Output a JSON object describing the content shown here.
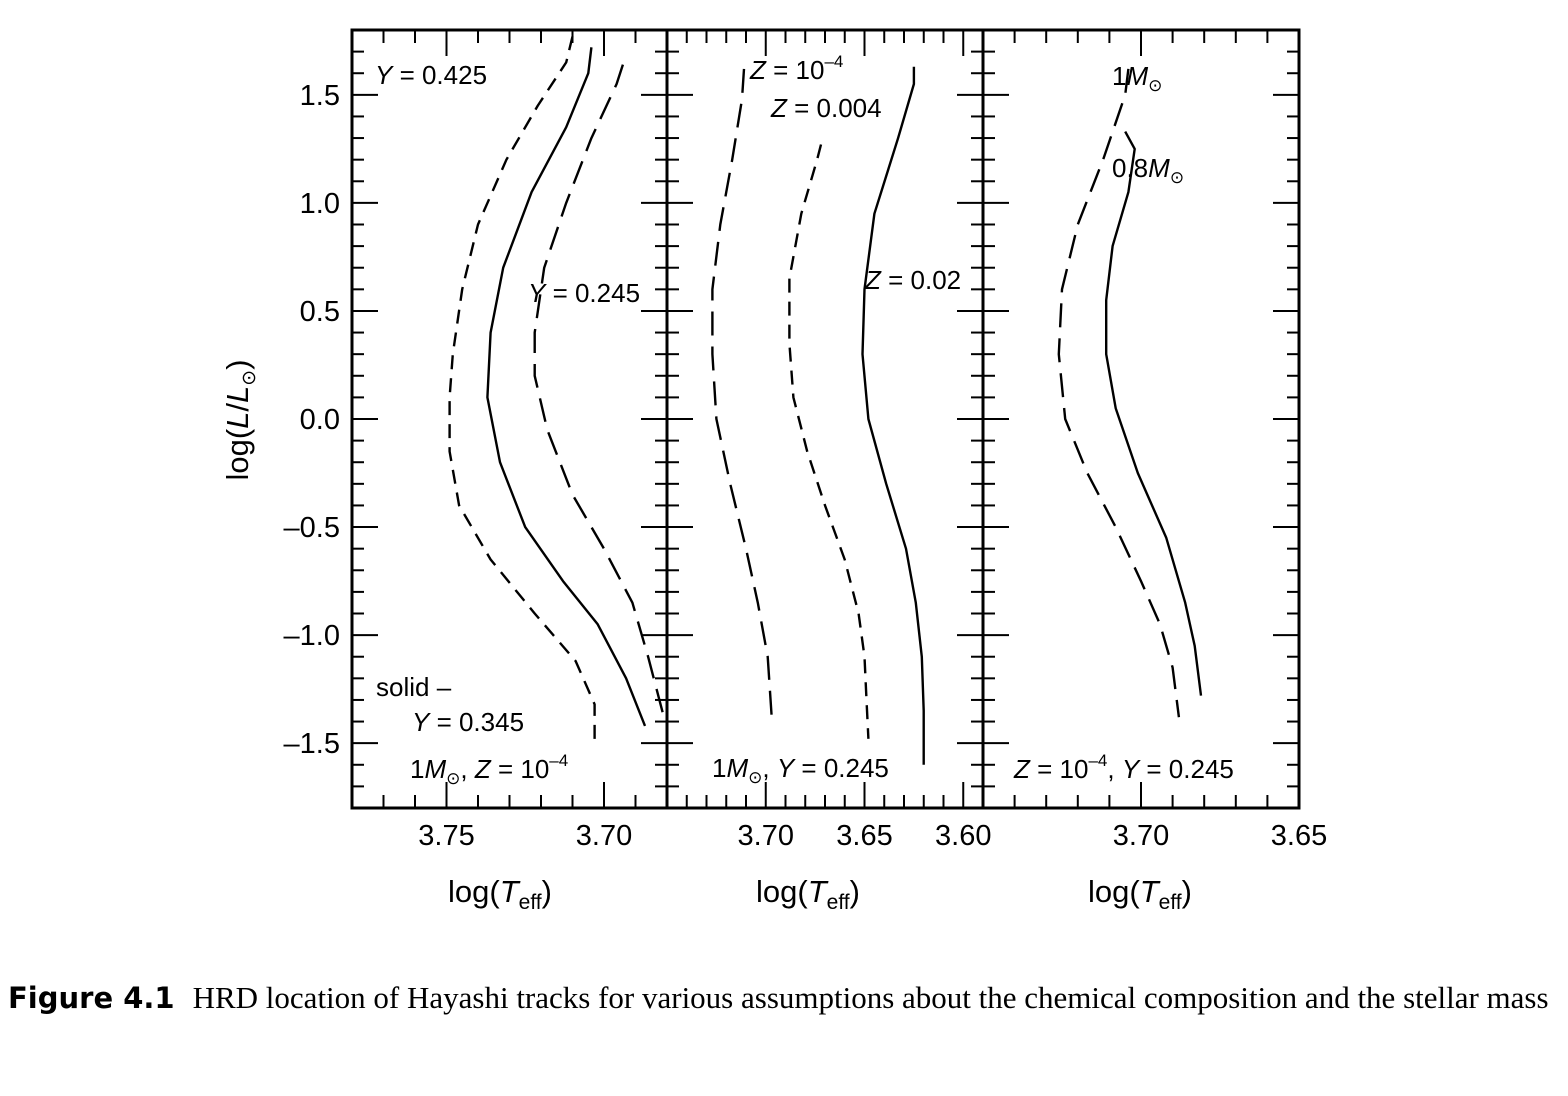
{
  "chart_data": [
    {
      "type": "line",
      "panel": "left",
      "xlabel": "log(T_eff)",
      "ylabel": "log(L/L_⊙)",
      "xlim": [
        3.78,
        3.68
      ],
      "ylim": [
        -1.8,
        1.8
      ],
      "xticks": [
        3.75,
        3.7
      ],
      "xtick_labels": [
        "3.75",
        "3.70"
      ],
      "yticks": [
        1.5,
        1.0,
        0.5,
        0.0,
        -0.5,
        -1.0,
        -1.5
      ],
      "ytick_labels": [
        "1.5",
        "1.0",
        "0.5",
        "0.0",
        "–0.5",
        "–1.0",
        "–1.5"
      ],
      "series": [
        {
          "name": "Y = 0.425",
          "style": "short-dash",
          "x": [
            3.71,
            3.712,
            3.721,
            3.731,
            3.74,
            3.745,
            3.748,
            3.749,
            3.749,
            3.746,
            3.736,
            3.722,
            3.709,
            3.703,
            3.703
          ],
          "y": [
            1.77,
            1.65,
            1.45,
            1.2,
            0.9,
            0.6,
            0.3,
            0.1,
            -0.15,
            -0.4,
            -0.65,
            -0.9,
            -1.12,
            -1.32,
            -1.5
          ]
        },
        {
          "name": "Y = 0.345",
          "style": "solid",
          "x": [
            3.704,
            3.705,
            3.712,
            3.723,
            3.732,
            3.736,
            3.737,
            3.733,
            3.725,
            3.713,
            3.702,
            3.693,
            3.687
          ],
          "y": [
            1.72,
            1.6,
            1.35,
            1.05,
            0.7,
            0.4,
            0.1,
            -0.2,
            -0.5,
            -0.75,
            -0.95,
            -1.2,
            -1.42
          ]
        },
        {
          "name": "Y = 0.245",
          "style": "long-dash",
          "x": [
            3.694,
            3.696,
            3.704,
            3.712,
            3.719,
            3.722,
            3.722,
            3.718,
            3.71,
            3.7,
            3.691,
            3.686,
            3.681
          ],
          "y": [
            1.64,
            1.55,
            1.3,
            1.0,
            0.7,
            0.4,
            0.2,
            -0.05,
            -0.35,
            -0.6,
            -0.85,
            -1.1,
            -1.38
          ]
        }
      ],
      "annotations": [
        "Y = 0.425",
        "Y = 0.245",
        "solid –",
        "Y = 0.345",
        "1M⊙, Z = 10⁻⁴"
      ]
    },
    {
      "type": "line",
      "panel": "middle",
      "xlabel": "log(T_eff)",
      "xlim": [
        3.75,
        3.59
      ],
      "ylim": [
        -1.8,
        1.8
      ],
      "xticks": [
        3.7,
        3.65,
        3.6
      ],
      "xtick_labels": [
        "3.70",
        "3.65",
        "3.60"
      ],
      "series": [
        {
          "name": "Z = 10⁻⁴",
          "style": "long-dash",
          "x": [
            3.711,
            3.712,
            3.717,
            3.723,
            3.727,
            3.727,
            3.725,
            3.718,
            3.71,
            3.704,
            3.699,
            3.697
          ],
          "y": [
            1.62,
            1.48,
            1.2,
            0.9,
            0.6,
            0.3,
            0.0,
            -0.3,
            -0.6,
            -0.85,
            -1.1,
            -1.38
          ]
        },
        {
          "name": "Z = 0.004",
          "style": "short-dash",
          "x": [
            3.672,
            3.674,
            3.682,
            3.688,
            3.688,
            3.686,
            3.679,
            3.67,
            3.66,
            3.653,
            3.65,
            3.649,
            3.648
          ],
          "y": [
            1.27,
            1.2,
            0.95,
            0.65,
            0.35,
            0.1,
            -0.15,
            -0.4,
            -0.65,
            -0.9,
            -1.1,
            -1.3,
            -1.48
          ]
        },
        {
          "name": "Z = 0.02",
          "style": "solid",
          "x": [
            3.625,
            3.625,
            3.633,
            3.645,
            3.65,
            3.651,
            3.648,
            3.639,
            3.629,
            3.624,
            3.621,
            3.62,
            3.62
          ],
          "y": [
            1.63,
            1.55,
            1.3,
            0.95,
            0.6,
            0.3,
            0.0,
            -0.3,
            -0.6,
            -0.85,
            -1.1,
            -1.35,
            -1.6
          ]
        }
      ],
      "annotations": [
        "Z = 10⁻⁴",
        "Z = 0.004",
        "Z = 0.02",
        "1M⊙, Y = 0.245"
      ]
    },
    {
      "type": "line",
      "panel": "right",
      "xlabel": "log(T_eff)",
      "xlim": [
        3.75,
        3.65
      ],
      "ylim": [
        -1.8,
        1.8
      ],
      "xticks": [
        3.7,
        3.65
      ],
      "xtick_labels": [
        "3.70",
        "3.65"
      ],
      "series": [
        {
          "name": "1M⊙",
          "style": "long-dash",
          "x": [
            3.704,
            3.705,
            3.712,
            3.72,
            3.725,
            3.726,
            3.724,
            3.717,
            3.708,
            3.7,
            3.694,
            3.69,
            3.688
          ],
          "y": [
            1.62,
            1.5,
            1.2,
            0.9,
            0.6,
            0.3,
            0.0,
            -0.25,
            -0.5,
            -0.75,
            -0.95,
            -1.15,
            -1.38
          ]
        },
        {
          "name": "0.8M⊙",
          "style": "solid",
          "x": [
            3.705,
            3.702,
            3.704,
            3.709,
            3.711,
            3.711,
            3.708,
            3.701,
            3.692,
            3.686,
            3.683,
            3.681
          ],
          "y": [
            1.33,
            1.25,
            1.05,
            0.8,
            0.55,
            0.3,
            0.05,
            -0.25,
            -0.55,
            -0.85,
            -1.05,
            -1.28
          ]
        }
      ],
      "annotations": [
        "1M⊙",
        "0.8M⊙",
        "Z = 10⁻⁴, Y = 0.245"
      ]
    }
  ],
  "caption": {
    "label": "Figure 4.1",
    "text": "HRD location of Hayashi tracks for various assumptions about the chemical composition and the stellar mass"
  }
}
